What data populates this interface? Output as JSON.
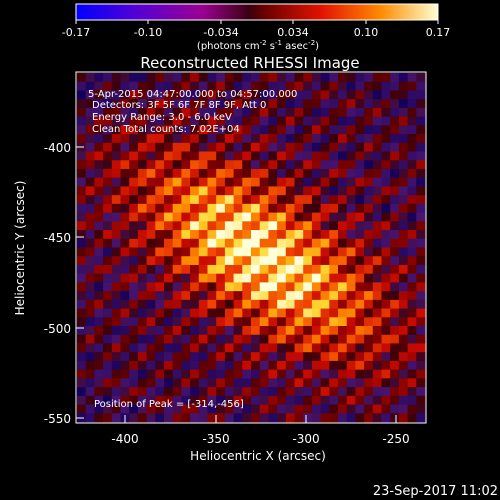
{
  "chart_data": {
    "type": "heatmap",
    "title": "Reconstructed RHESSI Image",
    "colorbar": {
      "min": -0.17,
      "max": 0.17,
      "ticks": [
        "-0.17",
        "-0.10",
        "-0.034",
        "0.034",
        "0.10",
        "0.17"
      ],
      "label": "(photons cm",
      "label_exp1": "-2",
      "label_mid": " s",
      "label_exp2": "-1",
      "label_mid2": " asec",
      "label_exp3": "-2",
      "label_end": ")"
    },
    "annotations": {
      "time_range": "5-Apr-2015 04:47:00.000 to 04:57:00.000",
      "detectors": "Detectors: 3F 5F 6F 7F 8F 9F, Att 0",
      "energy": "Energy Range: 3.0 - 6.0 keV",
      "clean": "Clean     Total counts: 7.02E+04",
      "peak": "Position of Peak = [-314,-456]"
    },
    "xlabel": "Heliocentric X (arcsec)",
    "ylabel": "Heliocentric Y (arcsec)",
    "xlim": [
      -428,
      -233
    ],
    "ylim": [
      -552,
      -357
    ],
    "xticks": [
      "-400",
      "-350",
      "-300",
      "-250"
    ],
    "yticks": [
      "-550",
      "-500",
      "-450",
      "-400"
    ],
    "peak": [
      -314,
      -456
    ],
    "grid": false
  },
  "footer": {
    "timestamp": "23-Sep-2017 11:02"
  }
}
